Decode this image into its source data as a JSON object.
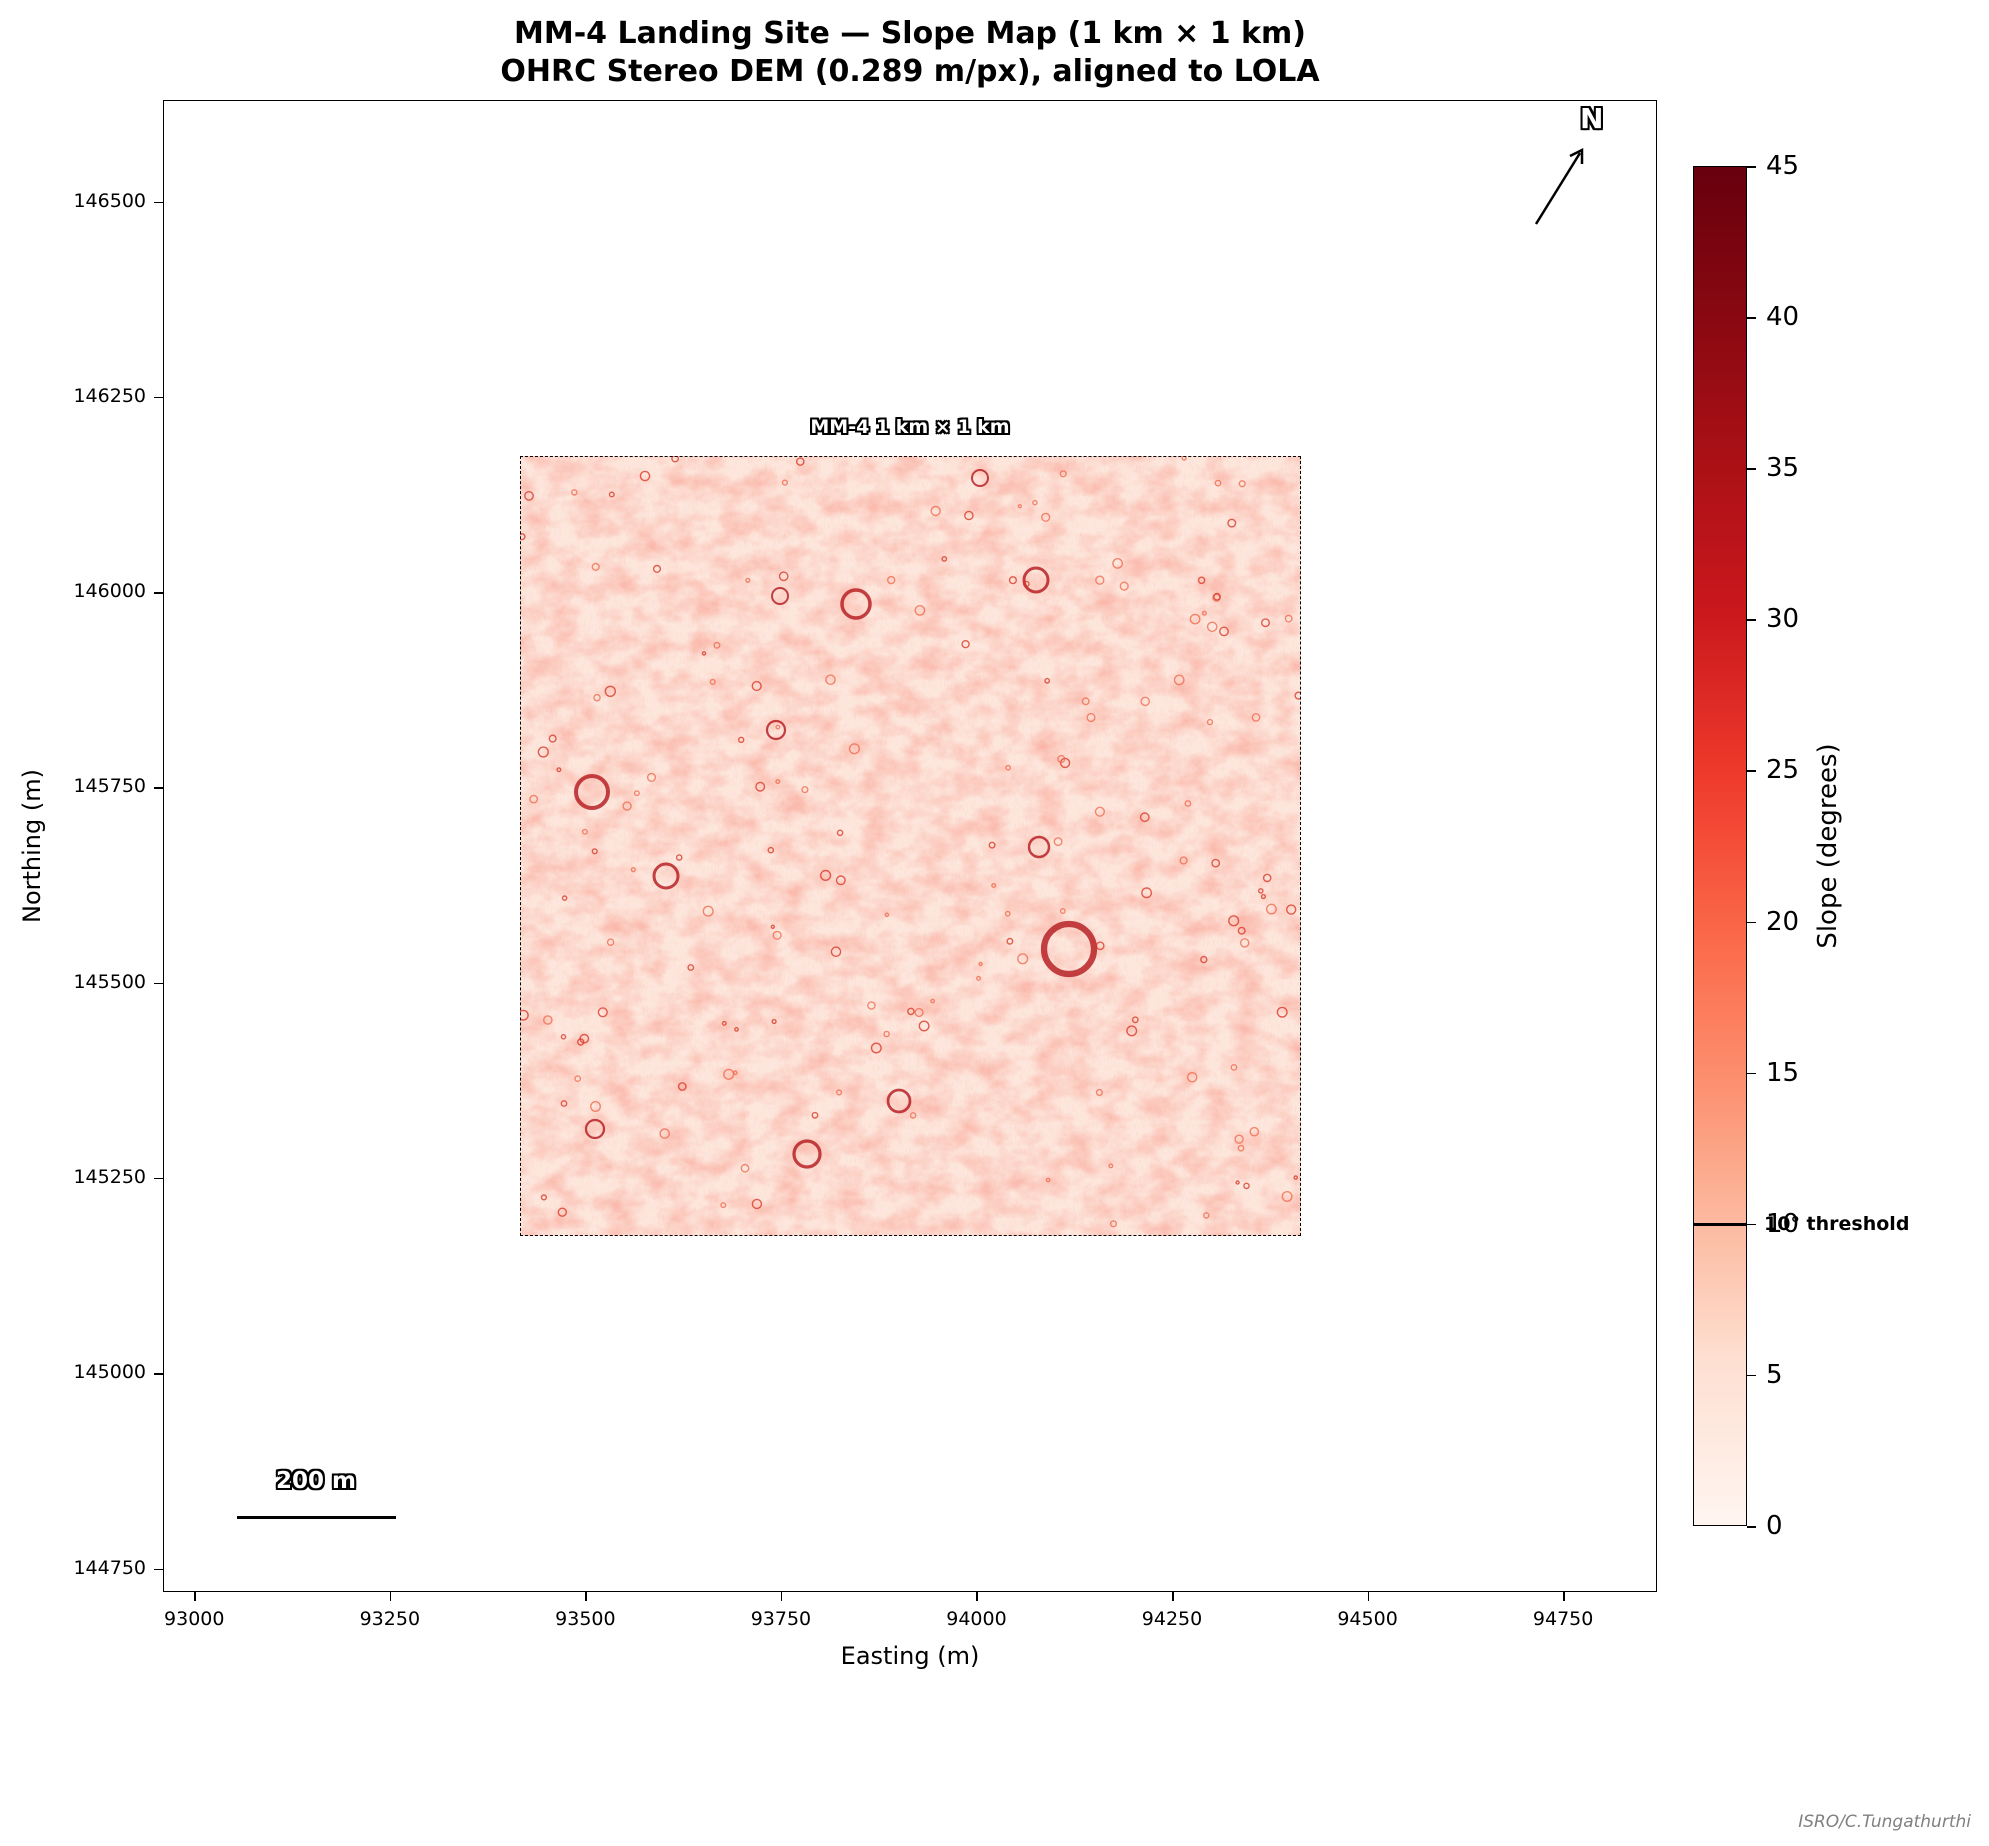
{
  "chart_data": {
    "type": "heatmap",
    "title": "MM-4 Landing Site — Slope Map (1 km × 1 km)",
    "subtitle": "OHRC Stereo DEM (0.289 m/px), aligned to LOLA",
    "xlabel": "Easting (m)",
    "ylabel": "Northing (m)",
    "xlim": [
      92960,
      94870
    ],
    "ylim": [
      144720,
      146630
    ],
    "xticks": [
      93000,
      93250,
      93500,
      93750,
      94000,
      94250,
      94500,
      94750
    ],
    "xtick_labels": [
      "93000",
      "93250",
      "93500",
      "93750",
      "94000",
      "94250",
      "94500",
      "94750"
    ],
    "yticks": [
      144750,
      145000,
      145250,
      145500,
      145750,
      146000,
      146250,
      146500
    ],
    "ytick_labels": [
      "144750",
      "145000",
      "145250",
      "145500",
      "145750",
      "146000",
      "146250",
      "146500"
    ],
    "extent": [
      93415,
      94415,
      145175,
      146175
    ],
    "site_label": "MM-4 1 km × 1 km",
    "colormap": "Reds",
    "colorbar": {
      "label": "Slope (degrees)",
      "min": 0,
      "max": 45,
      "ticks": [
        0,
        5,
        10,
        15,
        20,
        25,
        30,
        35,
        40,
        45
      ],
      "tick_labels": [
        "0",
        "5",
        "10",
        "15",
        "20",
        "25",
        "30",
        "35",
        "40",
        "45"
      ],
      "threshold": 10,
      "threshold_label": "10° threshold"
    },
    "scale_bar": {
      "length_m": 200,
      "label": "200 m"
    },
    "north_label": "N",
    "grid": false,
    "colors": {
      "low": "#fff5f0",
      "mid": "#fb6a4a",
      "high": "#67000d"
    }
  },
  "credit": "ISRO/C.Tungathurthi"
}
